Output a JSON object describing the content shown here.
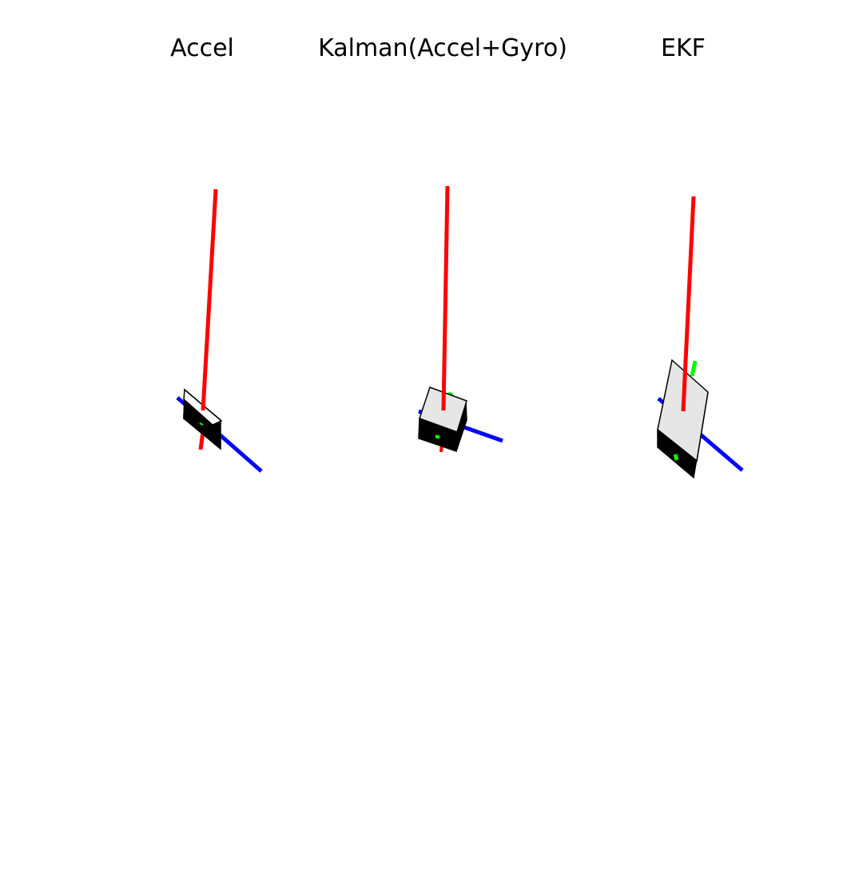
{
  "panels": [
    {
      "title": "Accel"
    },
    {
      "title": "Kalman(Accel+Gyro)"
    },
    {
      "title": "EKF"
    }
  ],
  "colors": {
    "x_axis": "#ff0000",
    "y_axis": "#00ff00",
    "z_axis": "#0000ff",
    "face_light": "#e6e6e6",
    "face_dark": "#000000",
    "outline": "#000000"
  }
}
